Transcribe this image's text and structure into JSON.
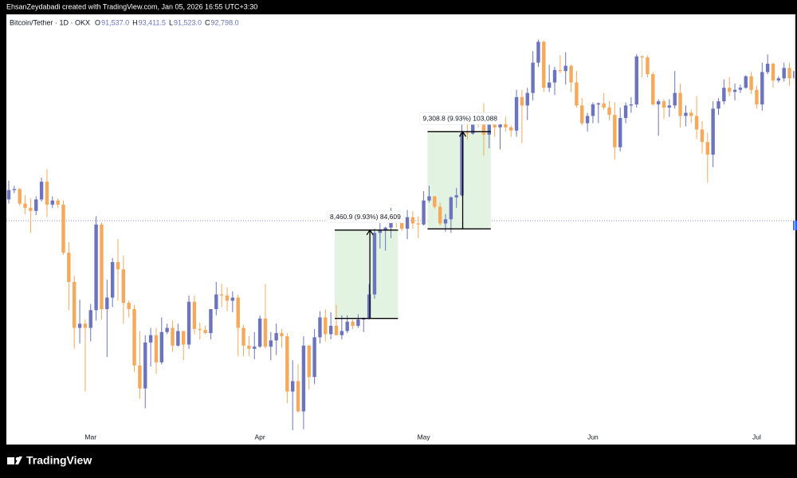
{
  "header": {
    "credit": "EhsanZeydabadi created with TradingView.com, Jan 05, 2026 16:55 UTC+3:30"
  },
  "chart_data": {
    "type": "candlestick",
    "title": "Bitcoin/Tether · 1D · OKX",
    "legend_values": [
      {
        "key": "O",
        "text": "91,537.0"
      },
      {
        "key": "H",
        "text": "93,411.5"
      },
      {
        "key": "L",
        "text": "91,523.0"
      },
      {
        "key": "C",
        "text": "92,798.0"
      }
    ],
    "categories": [
      null,
      null,
      null,
      null,
      null,
      null,
      null,
      null,
      null,
      null,
      null,
      null,
      null,
      null,
      null,
      "Mar",
      null,
      null,
      null,
      null,
      null,
      null,
      null,
      null,
      null,
      null,
      null,
      null,
      null,
      null,
      null,
      null,
      null,
      null,
      null,
      null,
      null,
      null,
      null,
      null,
      null,
      null,
      null,
      null,
      null,
      null,
      "Apr",
      null,
      null,
      null,
      null,
      null,
      null,
      null,
      null,
      null,
      null,
      null,
      null,
      null,
      null,
      null,
      null,
      null,
      null,
      null,
      null,
      null,
      null,
      null,
      null,
      null,
      null,
      null,
      null,
      null,
      "May",
      null,
      null,
      null,
      null,
      null,
      null,
      null,
      null,
      null,
      null,
      null,
      null,
      null,
      null,
      null,
      null,
      null,
      null,
      null,
      null,
      null,
      null,
      null,
      null,
      null,
      null,
      null,
      null,
      null,
      null,
      "Jun",
      null,
      null,
      null,
      null,
      null,
      null,
      null,
      null,
      null,
      null,
      null,
      null,
      null,
      null,
      null,
      null,
      null,
      null,
      null,
      null,
      null,
      null,
      null,
      null,
      null,
      null,
      null,
      null,
      null,
      "Jul",
      null,
      null,
      null,
      null,
      null,
      null,
      null
    ],
    "ohlc": [
      [
        96600,
        98400,
        96200,
        97500
      ],
      [
        97500,
        97900,
        97200,
        97600
      ],
      [
        97600,
        97700,
        96000,
        96200
      ],
      [
        96200,
        97000,
        95200,
        95800
      ],
      [
        95800,
        96700,
        93400,
        95500
      ],
      [
        95500,
        96900,
        95100,
        96600
      ],
      [
        96600,
        98700,
        96400,
        98300
      ],
      [
        98300,
        99500,
        94900,
        96100
      ],
      [
        96100,
        96900,
        95800,
        96500
      ],
      [
        96500,
        96700,
        95800,
        96100
      ],
      [
        96100,
        96500,
        91300,
        91500
      ],
      [
        91500,
        92500,
        86000,
        88700
      ],
      [
        88700,
        89300,
        82300,
        84300
      ],
      [
        84300,
        87000,
        82800,
        84700
      ],
      [
        84700,
        85100,
        78200,
        84300
      ],
      [
        84300,
        86600,
        83000,
        86000
      ],
      [
        86000,
        95000,
        85000,
        94200
      ],
      [
        94200,
        94400,
        85100,
        86100
      ],
      [
        86100,
        88900,
        81500,
        87200
      ],
      [
        87200,
        91000,
        86300,
        90600
      ],
      [
        90600,
        92800,
        86900,
        89900
      ],
      [
        89900,
        91200,
        84700,
        86700
      ],
      [
        86700,
        86900,
        85300,
        86100
      ],
      [
        86100,
        86500,
        80100,
        80700
      ],
      [
        80700,
        84000,
        77500,
        78500
      ],
      [
        78500,
        83600,
        76600,
        82900
      ],
      [
        82900,
        84300,
        80600,
        83600
      ],
      [
        83600,
        84300,
        79900,
        81000
      ],
      [
        81000,
        85300,
        80800,
        83900
      ],
      [
        83900,
        84700,
        83700,
        84300
      ],
      [
        84300,
        85000,
        82000,
        82600
      ],
      [
        82600,
        84700,
        82500,
        84000
      ],
      [
        84000,
        84000,
        81200,
        82700
      ],
      [
        82700,
        87400,
        82300,
        86800
      ],
      [
        86800,
        87400,
        83700,
        84200
      ],
      [
        84200,
        84800,
        83200,
        84100
      ],
      [
        84100,
        84500,
        83700,
        83800
      ],
      [
        83800,
        86100,
        83200,
        86100
      ],
      [
        86100,
        88700,
        85500,
        87500
      ],
      [
        87500,
        88500,
        86300,
        87400
      ],
      [
        87400,
        88200,
        85900,
        86900
      ],
      [
        86900,
        87800,
        85800,
        87200
      ],
      [
        87200,
        87500,
        81600,
        84300
      ],
      [
        84300,
        84600,
        81600,
        82600
      ],
      [
        82600,
        83500,
        81600,
        82300
      ],
      [
        82300,
        83900,
        81300,
        82500
      ],
      [
        82500,
        85500,
        82400,
        85200
      ],
      [
        85200,
        88500,
        82300,
        82500
      ],
      [
        82500,
        83900,
        81200,
        83100
      ],
      [
        83100,
        84700,
        81700,
        83800
      ],
      [
        83800,
        84200,
        82400,
        83500
      ],
      [
        83500,
        83800,
        77100,
        78200
      ],
      [
        78200,
        81200,
        74500,
        79200
      ],
      [
        79200,
        80800,
        76200,
        76300
      ],
      [
        76300,
        83500,
        74600,
        82600
      ],
      [
        82600,
        82700,
        78400,
        79600
      ],
      [
        79600,
        84200,
        78900,
        83400
      ],
      [
        83400,
        85900,
        82800,
        85300
      ],
      [
        85300,
        86100,
        83000,
        83700
      ],
      [
        83700,
        85800,
        83200,
        84500
      ],
      [
        84500,
        86500,
        83600,
        83600
      ],
      [
        83600,
        85500,
        83200,
        84000
      ],
      [
        84000,
        85500,
        83800,
        84900
      ],
      [
        84900,
        85100,
        84200,
        84500
      ],
      [
        84500,
        85600,
        84300,
        85100
      ],
      [
        85100,
        85300,
        83900,
        85200
      ],
      [
        85200,
        88500,
        85100,
        87500
      ],
      [
        87500,
        93800,
        87100,
        93400
      ],
      [
        93400,
        94700,
        91900,
        93700
      ],
      [
        93700,
        94000,
        91700,
        93900
      ],
      [
        93900,
        95800,
        92900,
        94700
      ],
      [
        94700,
        95300,
        93900,
        94600
      ],
      [
        94600,
        95400,
        93600,
        93800
      ],
      [
        93800,
        95600,
        92800,
        94900
      ],
      [
        94900,
        95500,
        93800,
        94300
      ],
      [
        94300,
        95000,
        92900,
        94200
      ],
      [
        94200,
        97400,
        94100,
        96500
      ],
      [
        96500,
        97900,
        96300,
        96900
      ],
      [
        96900,
        96900,
        95700,
        95900
      ],
      [
        95900,
        96300,
        94100,
        94300
      ],
      [
        94300,
        95200,
        93500,
        94700
      ],
      [
        94700,
        96900,
        93400,
        96800
      ],
      [
        96800,
        97700,
        95800,
        97000
      ],
      [
        97000,
        103800,
        96900,
        103000
      ],
      [
        103000,
        104300,
        102300,
        102900
      ],
      [
        102900,
        104900,
        102800,
        104600
      ],
      [
        104600,
        105000,
        103500,
        104100
      ],
      [
        104100,
        105800,
        100800,
        102800
      ],
      [
        102800,
        104900,
        101500,
        104200
      ],
      [
        104200,
        104400,
        102600,
        103500
      ],
      [
        103500,
        104200,
        101400,
        103800
      ],
      [
        103800,
        104500,
        103100,
        103500
      ],
      [
        103500,
        103700,
        102600,
        103200
      ],
      [
        103200,
        107100,
        102600,
        106400
      ],
      [
        106400,
        107100,
        102000,
        105600
      ],
      [
        105600,
        107300,
        104200,
        106800
      ],
      [
        106800,
        110800,
        106100,
        109700
      ],
      [
        109700,
        111900,
        109300,
        111700
      ],
      [
        111700,
        111800,
        106900,
        107300
      ],
      [
        107300,
        109500,
        106900,
        107800
      ],
      [
        107800,
        109300,
        106600,
        109000
      ],
      [
        109000,
        110400,
        108700,
        108900
      ],
      [
        108900,
        110700,
        107600,
        109400
      ],
      [
        109400,
        109500,
        106900,
        107800
      ],
      [
        107800,
        108900,
        105400,
        105600
      ],
      [
        105600,
        106300,
        103700,
        103900
      ],
      [
        103900,
        104900,
        103100,
        104600
      ],
      [
        104600,
        105900,
        103900,
        105700
      ],
      [
        105700,
        105900,
        103900,
        105800
      ],
      [
        105800,
        106800,
        105200,
        105400
      ],
      [
        105400,
        106000,
        104200,
        104700
      ],
      [
        104700,
        105900,
        100400,
        101600
      ],
      [
        101600,
        105400,
        101200,
        104400
      ],
      [
        104400,
        105900,
        103900,
        105600
      ],
      [
        105600,
        106400,
        104900,
        105700
      ],
      [
        105700,
        110500,
        105400,
        110300
      ],
      [
        110300,
        110400,
        108300,
        110200
      ],
      [
        110200,
        110400,
        108300,
        108600
      ],
      [
        108600,
        108800,
        105600,
        105700
      ],
      [
        105700,
        106200,
        102700,
        106000
      ],
      [
        106000,
        106200,
        104300,
        105400
      ],
      [
        105400,
        106200,
        104500,
        105600
      ],
      [
        105600,
        108900,
        105300,
        106800
      ],
      [
        106800,
        107700,
        103500,
        104600
      ],
      [
        104600,
        105600,
        103600,
        104900
      ],
      [
        104900,
        105200,
        103900,
        104600
      ],
      [
        104600,
        106500,
        102400,
        103300
      ],
      [
        103300,
        104100,
        101000,
        102100
      ],
      [
        102100,
        103000,
        98200,
        100900
      ],
      [
        100900,
        106000,
        99700,
        105300
      ],
      [
        105300,
        106300,
        104700,
        106000
      ],
      [
        106000,
        108100,
        105700,
        107300
      ],
      [
        107300,
        108300,
        106500,
        106900
      ],
      [
        106900,
        107700,
        106100,
        107100
      ],
      [
        107100,
        107600,
        106800,
        107300
      ],
      [
        107300,
        108500,
        107200,
        108400
      ],
      [
        108400,
        108800,
        106700,
        107100
      ],
      [
        107100,
        107500,
        105300,
        105700
      ],
      [
        105700,
        109700,
        105100,
        108800
      ],
      [
        108800,
        110500,
        108600,
        109600
      ],
      [
        109600,
        109700,
        107300,
        108000
      ],
      [
        108000,
        108400,
        107800,
        108200
      ],
      [
        108200,
        109700,
        107900,
        109200
      ],
      [
        109200,
        109700,
        107500,
        108200
      ],
      [
        108200,
        109200,
        107500,
        108900
      ]
    ],
    "ylim": [
      74500,
      114330
    ],
    "up_color": "#6b74bd",
    "down_color": "#f6a85b",
    "price_line": 94570,
    "measures": [
      {
        "label": "8,460.9 (9.93%) 84,609",
        "from": 85205,
        "to": 93666
      },
      {
        "label": "9,308.8 (9.93%) 103,088",
        "from": 93779.2,
        "to": 103088
      }
    ]
  },
  "footer": {
    "brand": "TradingView"
  }
}
